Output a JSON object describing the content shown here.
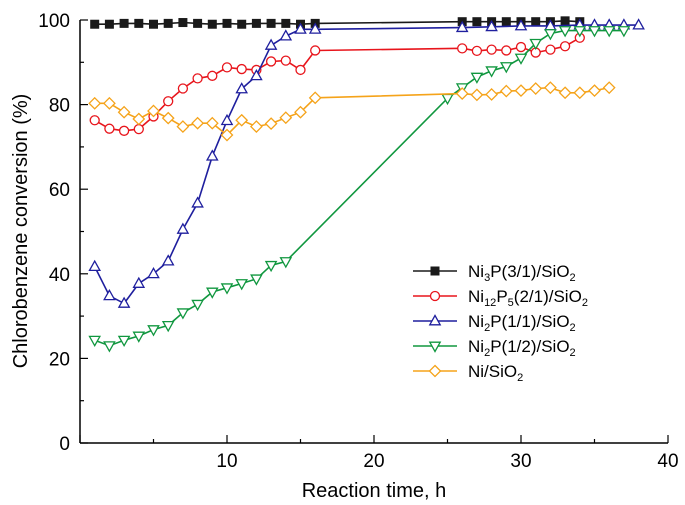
{
  "chart_data": {
    "type": "line",
    "xlabel": "Reaction time, h",
    "ylabel": "Chlorobenzene conversion (%)",
    "xlim": [
      0,
      40
    ],
    "ylim": [
      0,
      100
    ],
    "xticks": [
      0,
      10,
      20,
      30,
      40
    ],
    "yticks": [
      0,
      20,
      40,
      60,
      80,
      100
    ],
    "xtick_labels": [
      "10",
      "20",
      "30",
      "40"
    ],
    "ytick_labels": [
      "0",
      "20",
      "40",
      "60",
      "80",
      "100"
    ],
    "grid": false,
    "legend_position": "center-right",
    "series": [
      {
        "name": "Ni3P(3/1)/SiO2",
        "label_parts": [
          [
            "Ni",
            "n"
          ],
          [
            "3",
            "sub"
          ],
          [
            "P(3/1)/SiO",
            "n"
          ],
          [
            "2",
            "sub"
          ]
        ],
        "marker": "square-filled",
        "color": "#1a1a1a",
        "x": [
          1,
          2,
          3,
          4,
          5,
          6,
          7,
          8,
          9,
          10,
          11,
          12,
          13,
          14,
          15,
          16,
          26,
          27,
          28,
          29,
          30,
          31,
          32,
          33,
          34
        ],
        "y": [
          99.0,
          99.0,
          99.2,
          99.2,
          99.0,
          99.2,
          99.4,
          99.2,
          99.0,
          99.2,
          99.0,
          99.2,
          99.2,
          99.2,
          99.0,
          99.2,
          99.6,
          99.6,
          99.6,
          99.6,
          99.6,
          99.6,
          99.6,
          99.8,
          99.6
        ]
      },
      {
        "name": "Ni12P5(2/1)/SiO2",
        "label_parts": [
          [
            "Ni",
            "n"
          ],
          [
            "12",
            "sub"
          ],
          [
            "P",
            "n"
          ],
          [
            "5",
            "sub"
          ],
          [
            "(2/1)/SiO",
            "n"
          ],
          [
            "2",
            "sub"
          ]
        ],
        "marker": "circle-open",
        "color": "#e8151c",
        "x": [
          1,
          2,
          3,
          4,
          5,
          6,
          7,
          8,
          9,
          10,
          11,
          12,
          13,
          14,
          15,
          16,
          26,
          27,
          28,
          29,
          30,
          31,
          32,
          33,
          34
        ],
        "y": [
          76.3,
          74.3,
          73.8,
          74.2,
          77.2,
          80.8,
          83.8,
          86.2,
          86.8,
          88.8,
          88.4,
          88.2,
          90.2,
          90.4,
          88.2,
          92.8,
          93.3,
          92.7,
          93.0,
          92.8,
          93.6,
          92.3,
          93.0,
          93.8,
          95.8
        ]
      },
      {
        "name": "Ni2P(1/1)/SiO2",
        "label_parts": [
          [
            "Ni",
            "n"
          ],
          [
            "2",
            "sub"
          ],
          [
            "P(1/1)/SiO",
            "n"
          ],
          [
            "2",
            "sub"
          ]
        ],
        "marker": "triangle-up-open",
        "color": "#1f1f9e",
        "x": [
          1,
          2,
          3,
          4,
          5,
          6,
          7,
          8,
          9,
          10,
          11,
          12,
          13,
          14,
          15,
          16,
          26,
          28,
          30,
          32,
          34,
          35,
          36,
          37,
          38
        ],
        "y": [
          41.7,
          34.8,
          33.0,
          37.7,
          40.0,
          43.0,
          50.5,
          56.7,
          67.8,
          76.2,
          83.7,
          86.8,
          94.0,
          96.2,
          97.8,
          97.8,
          98.2,
          98.4,
          98.6,
          98.6,
          98.8,
          98.8,
          98.8,
          98.8,
          98.8
        ]
      },
      {
        "name": "Ni2P(1/2)/SiO2",
        "label_parts": [
          [
            "Ni",
            "n"
          ],
          [
            "2",
            "sub"
          ],
          [
            "P(1/2)/SiO",
            "n"
          ],
          [
            "2",
            "sub"
          ]
        ],
        "marker": "triangle-down-open",
        "color": "#10973f",
        "x": [
          1,
          2,
          3,
          4,
          5,
          6,
          7,
          8,
          9,
          10,
          11,
          12,
          13,
          14,
          25,
          26,
          27,
          28,
          29,
          30,
          31,
          32,
          33,
          34,
          35,
          36,
          37
        ],
        "y": [
          24.3,
          23.0,
          24.3,
          25.3,
          26.8,
          27.8,
          30.8,
          32.8,
          35.7,
          36.7,
          37.7,
          38.8,
          42.0,
          42.9,
          81.5,
          84.0,
          86.5,
          88.0,
          89.0,
          91.0,
          94.5,
          96.8,
          97.5,
          97.5,
          97.5,
          97.5,
          97.5
        ]
      },
      {
        "name": "Ni/SiO2",
        "label_parts": [
          [
            "Ni/SiO",
            "n"
          ],
          [
            "2",
            "sub"
          ]
        ],
        "marker": "diamond-open",
        "color": "#f5a31a",
        "x": [
          1,
          2,
          3,
          4,
          5,
          6,
          7,
          8,
          9,
          10,
          11,
          12,
          13,
          14,
          15,
          16,
          26,
          27,
          28,
          29,
          30,
          31,
          32,
          33,
          34,
          35,
          36
        ],
        "y": [
          80.3,
          80.3,
          78.2,
          76.6,
          78.5,
          76.8,
          74.8,
          75.6,
          75.6,
          72.8,
          76.3,
          74.8,
          75.5,
          76.9,
          78.2,
          81.6,
          82.6,
          82.3,
          82.4,
          83.2,
          83.3,
          83.8,
          84.0,
          82.8,
          82.8,
          83.3,
          84.0
        ]
      }
    ]
  }
}
